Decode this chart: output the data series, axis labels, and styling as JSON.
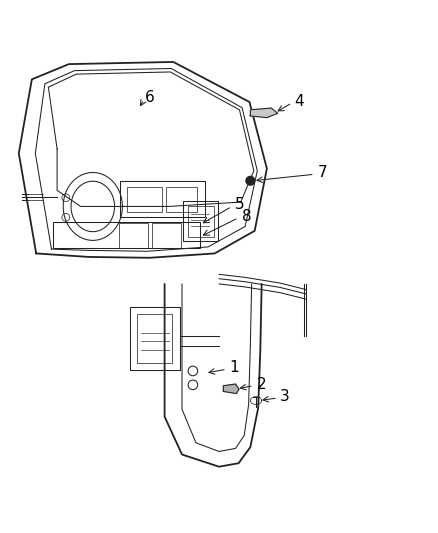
{
  "bg_color": "#ffffff",
  "line_color": "#222222",
  "label_color": "#000000",
  "figure_width": 4.38,
  "figure_height": 5.33,
  "dpi": 100
}
